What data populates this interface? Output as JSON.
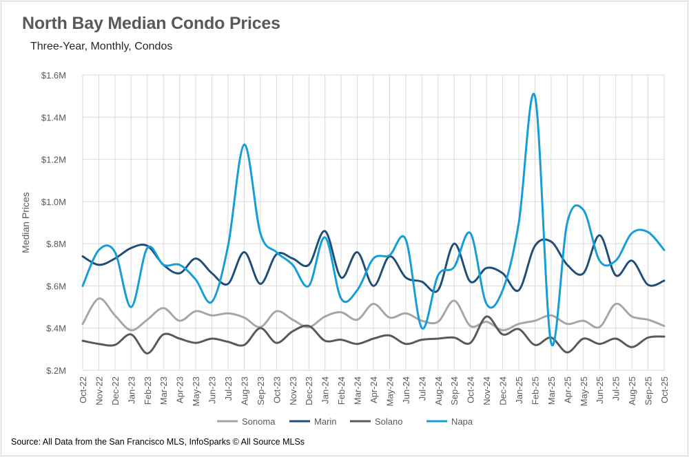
{
  "chart_data": {
    "type": "line",
    "title": "North Bay Median Condo Prices",
    "subtitle": "Three-Year, Monthly, Condos",
    "xlabel": "",
    "ylabel": "Median Prices",
    "ylim": [
      200000,
      1600000
    ],
    "yticks": [
      200000,
      400000,
      600000,
      800000,
      1000000,
      1200000,
      1400000,
      1600000
    ],
    "ytick_labels": [
      "$.2M",
      "$.4M",
      "$.6M",
      "$.8M",
      "$1.0M",
      "$1.2M",
      "$1.4M",
      "$1.6M"
    ],
    "grid": true,
    "legend_position": "bottom",
    "categories": [
      "Oct-22",
      "Nov-22",
      "Dec-22",
      "Jan-23",
      "Feb-23",
      "Mar-23",
      "Apr-23",
      "May-23",
      "Jun-23",
      "Jul-23",
      "Aug-23",
      "Sep-23",
      "Oct-23",
      "Nov-23",
      "Dec-23",
      "Jan-24",
      "Feb-24",
      "Mar-24",
      "Apr-24",
      "May-24",
      "Jun-24",
      "Jul-24",
      "Aug-24",
      "Sep-24",
      "Oct-24",
      "Nov-24",
      "Dec-24",
      "Jan-25",
      "Feb-25",
      "Mar-25",
      "Apr-25",
      "May-25",
      "Jun-25",
      "Jul-25",
      "Aug-25",
      "Sep-25",
      "Oct-25"
    ],
    "series": [
      {
        "name": "Sonoma",
        "color": "#a6a6a6",
        "values": [
          420000,
          540000,
          460000,
          390000,
          440000,
          495000,
          435000,
          480000,
          460000,
          470000,
          450000,
          405000,
          480000,
          440000,
          405000,
          455000,
          475000,
          440000,
          515000,
          450000,
          470000,
          435000,
          430000,
          530000,
          410000,
          430000,
          390000,
          420000,
          435000,
          460000,
          420000,
          435000,
          405000,
          515000,
          455000,
          440000,
          410000
        ]
      },
      {
        "name": "Marin",
        "color": "#1f4e79",
        "values": [
          740000,
          700000,
          730000,
          780000,
          790000,
          700000,
          660000,
          730000,
          660000,
          610000,
          760000,
          610000,
          750000,
          730000,
          700000,
          860000,
          640000,
          760000,
          600000,
          740000,
          640000,
          620000,
          580000,
          800000,
          620000,
          685000,
          660000,
          580000,
          790000,
          810000,
          700000,
          660000,
          840000,
          650000,
          720000,
          605000,
          625000
        ]
      },
      {
        "name": "Solano",
        "color": "#595959",
        "values": [
          340000,
          325000,
          320000,
          370000,
          280000,
          370000,
          350000,
          330000,
          350000,
          335000,
          320000,
          400000,
          330000,
          385000,
          410000,
          340000,
          345000,
          325000,
          350000,
          365000,
          325000,
          345000,
          350000,
          355000,
          330000,
          455000,
          370000,
          395000,
          320000,
          355000,
          285000,
          350000,
          325000,
          350000,
          310000,
          355000,
          360000
        ]
      },
      {
        "name": "Napa",
        "color": "#149dd6",
        "values": [
          600000,
          770000,
          760000,
          500000,
          780000,
          700000,
          700000,
          630000,
          525000,
          790000,
          1270000,
          850000,
          760000,
          700000,
          600000,
          830000,
          540000,
          580000,
          730000,
          745000,
          820000,
          400000,
          650000,
          690000,
          850000,
          515000,
          580000,
          900000,
          1500000,
          330000,
          900000,
          960000,
          720000,
          720000,
          850000,
          855000,
          770000
        ]
      }
    ]
  },
  "source": "Source: All Data from the San Francisco MLS, InfoSparks © All Source MLSs"
}
